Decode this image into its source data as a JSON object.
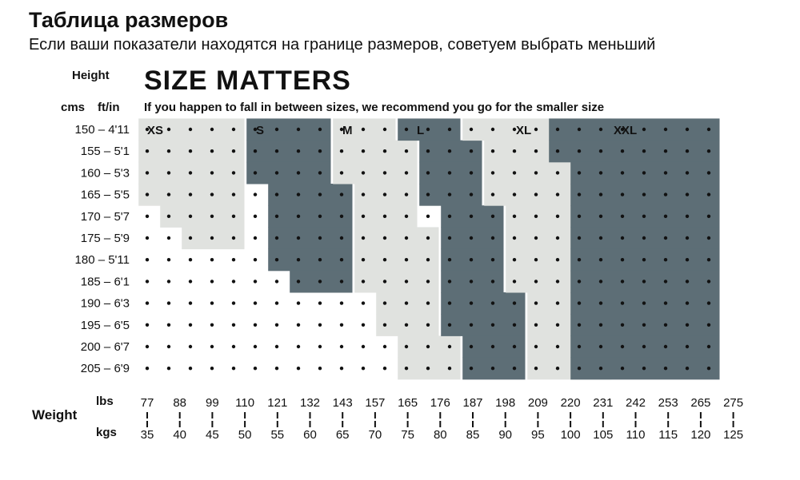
{
  "header": {
    "title": "Таблица размеров",
    "subtitle": "Если ваши показатели находятся на границе размеров, советуем выбрать меньший"
  },
  "chart_data": {
    "type": "heatmap",
    "title": "SIZE MATTERS",
    "subtitle": "If you happen to fall in between sizes, we recommend you go for the smaller size",
    "y_axis": {
      "label": "Height",
      "unit_labels": [
        "cms",
        "ft/in"
      ]
    },
    "x_axis": {
      "label": "Weight",
      "unit_labels": [
        "lbs",
        "kgs"
      ]
    },
    "heights": [
      "150 – 4'11",
      "155 – 5'1",
      "160 – 5'3",
      "165 – 5'5",
      "170 – 5'7",
      "175 – 5'9",
      "180 – 5'11",
      "185 – 6'1",
      "190 – 6'3",
      "195 – 6'5",
      "200 – 6'7",
      "205 – 6'9"
    ],
    "lbs": [
      "77",
      "88",
      "99",
      "110",
      "121",
      "132",
      "143",
      "157",
      "165",
      "176",
      "187",
      "198",
      "209",
      "220",
      "231",
      "242",
      "253",
      "265",
      "275"
    ],
    "kgs": [
      "35",
      "40",
      "45",
      "50",
      "55",
      "60",
      "65",
      "70",
      "75",
      "80",
      "85",
      "90",
      "95",
      "100",
      "105",
      "110",
      "115",
      "120",
      "125"
    ],
    "sizes": [
      {
        "name": "XS",
        "shade": "light",
        "ranges": [
          [
            0,
            4
          ],
          [
            0,
            4
          ],
          [
            0,
            4
          ],
          [
            0,
            4
          ],
          [
            1,
            4
          ],
          [
            2,
            4
          ],
          null,
          null,
          null,
          null,
          null,
          null
        ]
      },
      {
        "name": "S",
        "shade": "dark",
        "ranges": [
          [
            5,
            8
          ],
          [
            5,
            8
          ],
          [
            5,
            8
          ],
          [
            6,
            9
          ],
          [
            6,
            9
          ],
          [
            6,
            9
          ],
          [
            6,
            9
          ],
          [
            7,
            9
          ],
          null,
          null,
          null,
          null
        ]
      },
      {
        "name": "M",
        "shade": "light",
        "ranges": [
          [
            9,
            11
          ],
          [
            9,
            12
          ],
          [
            9,
            12
          ],
          [
            10,
            12
          ],
          [
            10,
            12
          ],
          [
            10,
            13
          ],
          [
            10,
            13
          ],
          [
            10,
            13
          ],
          [
            11,
            13
          ],
          [
            11,
            13
          ],
          [
            12,
            14
          ],
          [
            12,
            14
          ]
        ]
      },
      {
        "name": "L",
        "shade": "dark",
        "ranges": [
          [
            12,
            14
          ],
          [
            13,
            15
          ],
          [
            13,
            15
          ],
          [
            13,
            15
          ],
          [
            14,
            16
          ],
          [
            14,
            16
          ],
          [
            14,
            16
          ],
          [
            14,
            16
          ],
          [
            14,
            17
          ],
          [
            14,
            17
          ],
          [
            15,
            17
          ],
          [
            15,
            17
          ]
        ]
      },
      {
        "name": "XL",
        "shade": "light",
        "ranges": [
          [
            15,
            17
          ],
          [
            16,
            17
          ],
          [
            16,
            17
          ],
          [
            16,
            17
          ],
          [
            17,
            17
          ],
          [
            17,
            17
          ],
          [
            17,
            17
          ],
          [
            17,
            17
          ],
          [
            18,
            17
          ],
          [
            18,
            17
          ],
          [
            18,
            17
          ],
          [
            18,
            17
          ]
        ]
      }
    ],
    "colors": {
      "light": "#e0e2df",
      "dark": "#5d6e76",
      "dots": "#111111"
    }
  }
}
